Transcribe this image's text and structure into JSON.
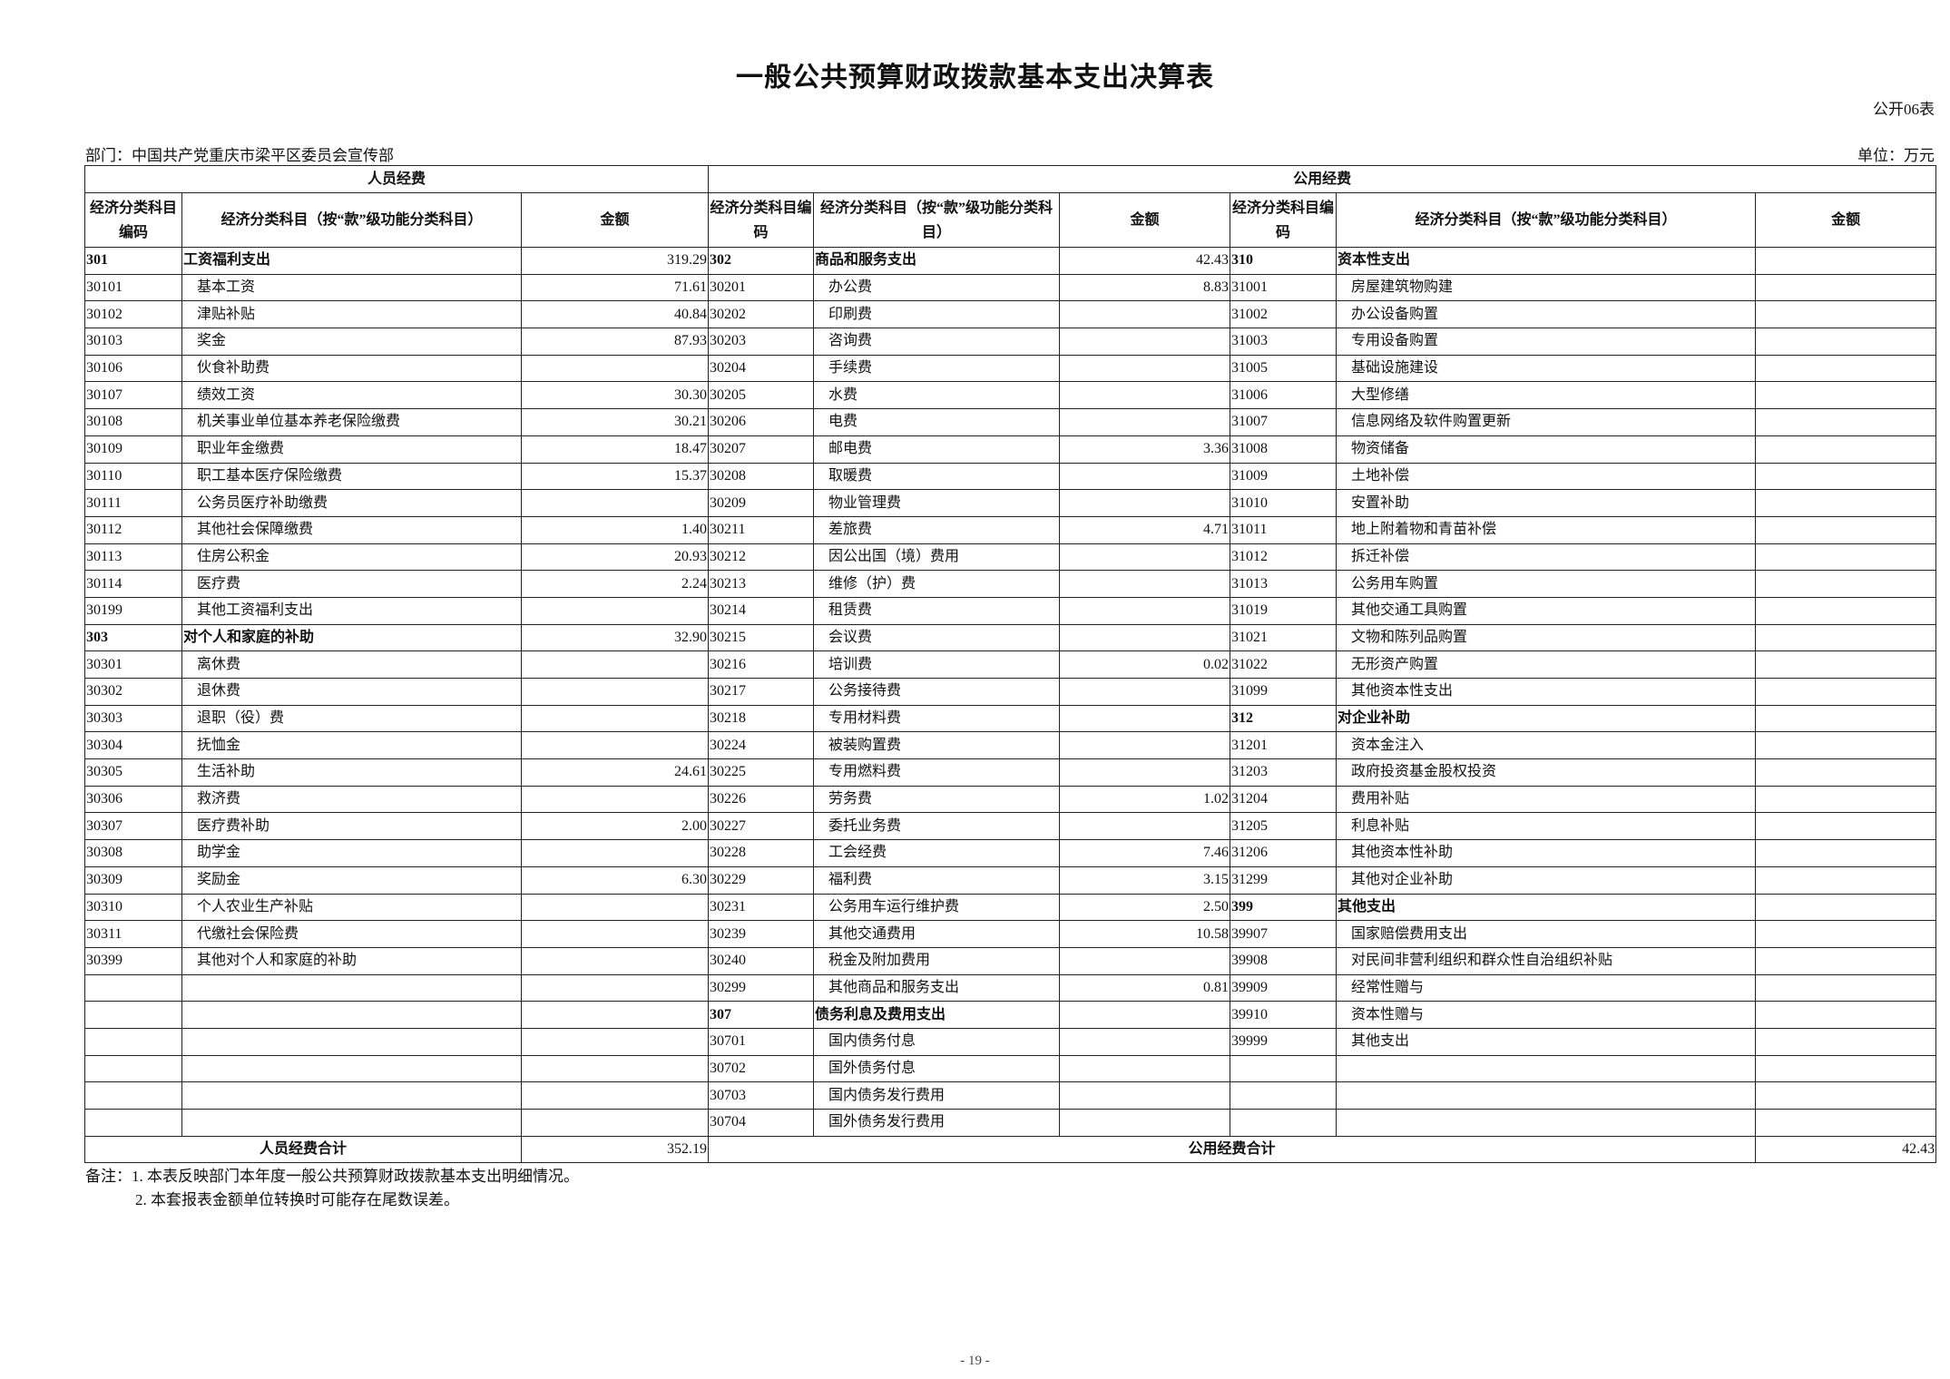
{
  "title": "一般公共预算财政拨款基本支出决算表",
  "form_no": "公开06表",
  "department": "部门：中国共产党重庆市梁平区委员会宣传部",
  "unit": "单位：万元",
  "headers": {
    "personnel": "人员经费",
    "public": "公用经费",
    "code": "经济分类科目编码",
    "name_left": "经济分类科目（按“款”级功能分类科目）",
    "name_mid": "经济分类科目（按“款”级功能分类科目）",
    "name_right": "经济分类科目（按“款”级功能分类科目）",
    "amount": "金额"
  },
  "rows": [
    {
      "left": [
        "301",
        "工资福利支出",
        "319.29",
        true
      ],
      "mid": [
        "302",
        "商品和服务支出",
        "42.43",
        true
      ],
      "right": [
        "310",
        "资本性支出",
        "",
        true
      ]
    },
    {
      "left": [
        "30101",
        "基本工资",
        "71.61"
      ],
      "mid": [
        "30201",
        "办公费",
        "8.83"
      ],
      "right": [
        "31001",
        "房屋建筑物购建",
        ""
      ]
    },
    {
      "left": [
        "30102",
        "津贴补贴",
        "40.84"
      ],
      "mid": [
        "30202",
        "印刷费",
        ""
      ],
      "right": [
        "31002",
        "办公设备购置",
        ""
      ]
    },
    {
      "left": [
        "30103",
        "奖金",
        "87.93"
      ],
      "mid": [
        "30203",
        "咨询费",
        ""
      ],
      "right": [
        "31003",
        "专用设备购置",
        ""
      ]
    },
    {
      "left": [
        "30106",
        "伙食补助费",
        ""
      ],
      "mid": [
        "30204",
        "手续费",
        ""
      ],
      "right": [
        "31005",
        "基础设施建设",
        ""
      ]
    },
    {
      "left": [
        "30107",
        "绩效工资",
        "30.30"
      ],
      "mid": [
        "30205",
        "水费",
        ""
      ],
      "right": [
        "31006",
        "大型修缮",
        ""
      ]
    },
    {
      "left": [
        "30108",
        "机关事业单位基本养老保险缴费",
        "30.21"
      ],
      "mid": [
        "30206",
        "电费",
        ""
      ],
      "right": [
        "31007",
        "信息网络及软件购置更新",
        ""
      ]
    },
    {
      "left": [
        "30109",
        "职业年金缴费",
        "18.47"
      ],
      "mid": [
        "30207",
        "邮电费",
        "3.36"
      ],
      "right": [
        "31008",
        "物资储备",
        ""
      ]
    },
    {
      "left": [
        "30110",
        "职工基本医疗保险缴费",
        "15.37"
      ],
      "mid": [
        "30208",
        "取暖费",
        ""
      ],
      "right": [
        "31009",
        "土地补偿",
        ""
      ]
    },
    {
      "left": [
        "30111",
        "公务员医疗补助缴费",
        ""
      ],
      "mid": [
        "30209",
        "物业管理费",
        ""
      ],
      "right": [
        "31010",
        "安置补助",
        ""
      ]
    },
    {
      "left": [
        "30112",
        "其他社会保障缴费",
        "1.40"
      ],
      "mid": [
        "30211",
        "差旅费",
        "4.71"
      ],
      "right": [
        "31011",
        "地上附着物和青苗补偿",
        ""
      ]
    },
    {
      "left": [
        "30113",
        "住房公积金",
        "20.93"
      ],
      "mid": [
        "30212",
        "因公出国（境）费用",
        ""
      ],
      "right": [
        "31012",
        "拆迁补偿",
        ""
      ]
    },
    {
      "left": [
        "30114",
        "医疗费",
        "2.24"
      ],
      "mid": [
        "30213",
        "维修（护）费",
        ""
      ],
      "right": [
        "31013",
        "公务用车购置",
        ""
      ]
    },
    {
      "left": [
        "30199",
        "其他工资福利支出",
        ""
      ],
      "mid": [
        "30214",
        "租赁费",
        ""
      ],
      "right": [
        "31019",
        "其他交通工具购置",
        ""
      ]
    },
    {
      "left": [
        "303",
        "对个人和家庭的补助",
        "32.90",
        true
      ],
      "mid": [
        "30215",
        "会议费",
        ""
      ],
      "right": [
        "31021",
        "文物和陈列品购置",
        ""
      ]
    },
    {
      "left": [
        "30301",
        "离休费",
        ""
      ],
      "mid": [
        "30216",
        "培训费",
        "0.02"
      ],
      "right": [
        "31022",
        "无形资产购置",
        ""
      ]
    },
    {
      "left": [
        "30302",
        "退休费",
        ""
      ],
      "mid": [
        "30217",
        "公务接待费",
        ""
      ],
      "right": [
        "31099",
        "其他资本性支出",
        ""
      ]
    },
    {
      "left": [
        "30303",
        "退职（役）费",
        ""
      ],
      "mid": [
        "30218",
        "专用材料费",
        ""
      ],
      "right": [
        "312",
        "对企业补助",
        "",
        true
      ]
    },
    {
      "left": [
        "30304",
        "抚恤金",
        ""
      ],
      "mid": [
        "30224",
        "被装购置费",
        ""
      ],
      "right": [
        "31201",
        "资本金注入",
        ""
      ]
    },
    {
      "left": [
        "30305",
        "生活补助",
        "24.61"
      ],
      "mid": [
        "30225",
        "专用燃料费",
        ""
      ],
      "right": [
        "31203",
        "政府投资基金股权投资",
        ""
      ]
    },
    {
      "left": [
        "30306",
        "救济费",
        ""
      ],
      "mid": [
        "30226",
        "劳务费",
        "1.02"
      ],
      "right": [
        "31204",
        "费用补贴",
        ""
      ]
    },
    {
      "left": [
        "30307",
        "医疗费补助",
        "2.00"
      ],
      "mid": [
        "30227",
        "委托业务费",
        ""
      ],
      "right": [
        "31205",
        "利息补贴",
        ""
      ]
    },
    {
      "left": [
        "30308",
        "助学金",
        ""
      ],
      "mid": [
        "30228",
        "工会经费",
        "7.46"
      ],
      "right": [
        "31206",
        "其他资本性补助",
        ""
      ]
    },
    {
      "left": [
        "30309",
        "奖励金",
        "6.30"
      ],
      "mid": [
        "30229",
        "福利费",
        "3.15"
      ],
      "right": [
        "31299",
        "其他对企业补助",
        ""
      ]
    },
    {
      "left": [
        "30310",
        "个人农业生产补贴",
        ""
      ],
      "mid": [
        "30231",
        "公务用车运行维护费",
        "2.50"
      ],
      "right": [
        "399",
        "其他支出",
        "",
        true
      ]
    },
    {
      "left": [
        "30311",
        "代缴社会保险费",
        ""
      ],
      "mid": [
        "30239",
        "其他交通费用",
        "10.58"
      ],
      "right": [
        "39907",
        "国家赔偿费用支出",
        ""
      ]
    },
    {
      "left": [
        "30399",
        "其他对个人和家庭的补助",
        ""
      ],
      "mid": [
        "30240",
        "税金及附加费用",
        ""
      ],
      "right": [
        "39908",
        "对民间非营利组织和群众性自治组织补贴",
        ""
      ]
    },
    {
      "left": [
        "",
        "",
        ""
      ],
      "mid": [
        "30299",
        "其他商品和服务支出",
        "0.81"
      ],
      "right": [
        "39909",
        "经常性赠与",
        ""
      ]
    },
    {
      "left": [
        "",
        "",
        ""
      ],
      "mid": [
        "307",
        "债务利息及费用支出",
        "",
        true
      ],
      "right": [
        "39910",
        "资本性赠与",
        ""
      ]
    },
    {
      "left": [
        "",
        "",
        ""
      ],
      "mid": [
        "30701",
        "国内债务付息",
        ""
      ],
      "right": [
        "39999",
        "其他支出",
        ""
      ]
    },
    {
      "left": [
        "",
        "",
        ""
      ],
      "mid": [
        "30702",
        "国外债务付息",
        ""
      ],
      "right": [
        "",
        "",
        ""
      ]
    },
    {
      "left": [
        "",
        "",
        ""
      ],
      "mid": [
        "30703",
        "国内债务发行费用",
        ""
      ],
      "right": [
        "",
        "",
        ""
      ]
    },
    {
      "left": [
        "",
        "",
        ""
      ],
      "mid": [
        "30704",
        "国外债务发行费用",
        ""
      ],
      "right": [
        "",
        "",
        ""
      ]
    }
  ],
  "totals": {
    "personnel_label": "人员经费合计",
    "personnel_value": "352.19",
    "public_label": "公用经费合计",
    "public_value": "42.43"
  },
  "notes": [
    "备注：1. 本表反映部门本年度一般公共预算财政拨款基本支出明细情况。",
    "2. 本套报表金额单位转换时可能存在尾数误差。"
  ],
  "page_number": "- 19 -"
}
